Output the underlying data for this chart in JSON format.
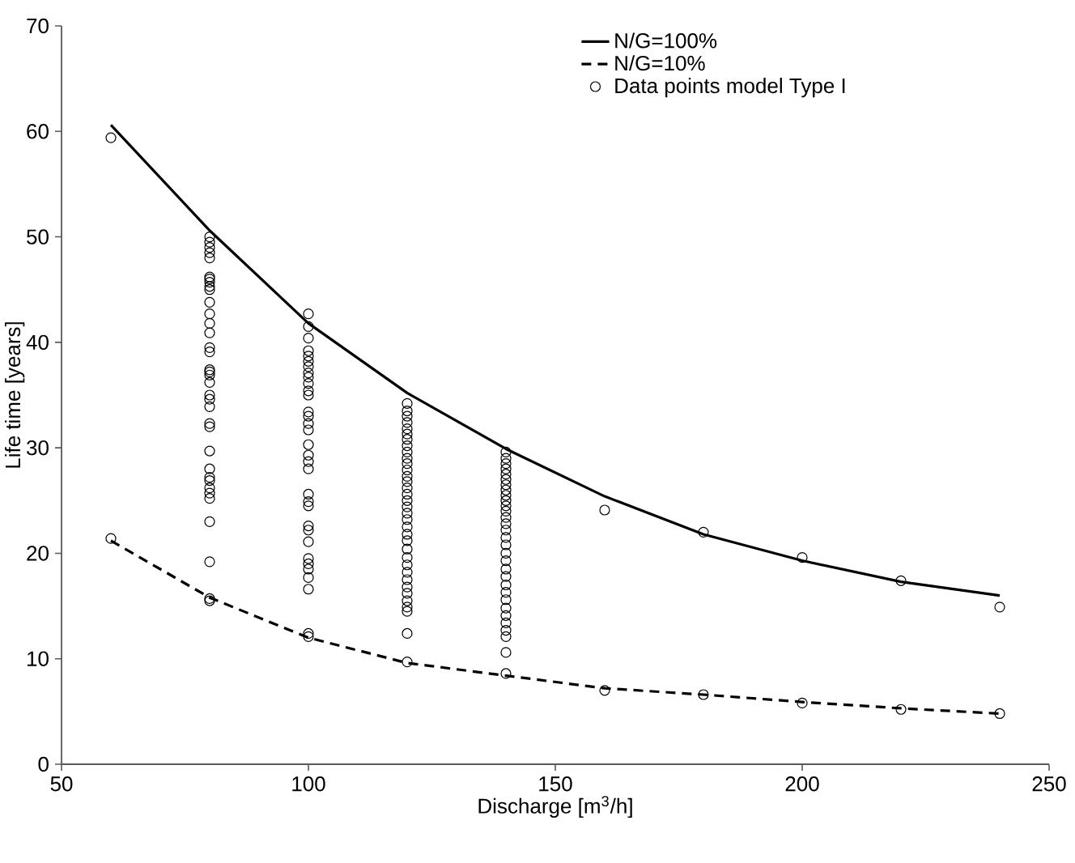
{
  "chart_data": {
    "type": "line",
    "xlabel": "Discharge [m$^{3}$/h]",
    "ylabel": "Life time [years]",
    "xlim": [
      50,
      250
    ],
    "ylim": [
      0,
      70
    ],
    "xticks": [
      50,
      100,
      150,
      200,
      250
    ],
    "yticks": [
      0,
      10,
      20,
      30,
      40,
      50,
      60,
      70
    ],
    "grid": false,
    "legend": "top right",
    "series": [
      {
        "name": "N/G=100%",
        "color": "#000000",
        "line_style": "solid",
        "marker": "none",
        "x": [
          60,
          80,
          100,
          120,
          140,
          160,
          180,
          200,
          220,
          240
        ],
        "values": [
          60.6,
          50.6,
          41.8,
          35.2,
          29.9,
          25.4,
          21.8,
          19.3,
          17.3,
          16.0
        ]
      },
      {
        "name": "N/G=10%",
        "color": "#000000",
        "line_style": "dashed",
        "marker": "none",
        "x": [
          60,
          80,
          100,
          120,
          140,
          160,
          180,
          200,
          220,
          240
        ],
        "values": [
          21.2,
          15.8,
          12.0,
          9.6,
          8.4,
          7.2,
          6.6,
          5.9,
          5.3,
          4.8
        ]
      },
      {
        "name": "Data points model Type I",
        "type": "scatter",
        "color": "#000000",
        "marker": "circle",
        "x": [
          60,
          60,
          80,
          80,
          80,
          80,
          80,
          80,
          80,
          80,
          80,
          80,
          80,
          80,
          80,
          80,
          80,
          80,
          80,
          80,
          80,
          80,
          80,
          80,
          80,
          80,
          80,
          80,
          80,
          80,
          80,
          80,
          80,
          80,
          80,
          80,
          80,
          80,
          100,
          100,
          100,
          100,
          100,
          100,
          100,
          100,
          100,
          100,
          100,
          100,
          100,
          100,
          100,
          100,
          100,
          100,
          100,
          100,
          100,
          100,
          100,
          100,
          100,
          100,
          100,
          100,
          100,
          100,
          100,
          100,
          100,
          120,
          120,
          120,
          120,
          120,
          120,
          120,
          120,
          120,
          120,
          120,
          120,
          120,
          120,
          120,
          120,
          120,
          120,
          120,
          120,
          120,
          120,
          120,
          120,
          120,
          120,
          120,
          120,
          120,
          120,
          120,
          120,
          120,
          120,
          120,
          140,
          140,
          140,
          140,
          140,
          140,
          140,
          140,
          140,
          140,
          140,
          140,
          140,
          140,
          140,
          140,
          140,
          140,
          140,
          140,
          140,
          140,
          140,
          140,
          140,
          140,
          140,
          140,
          140,
          140,
          140,
          160,
          160,
          180,
          180,
          200,
          200,
          220,
          220,
          240,
          240
        ],
        "values": [
          59.4,
          21.4,
          50.0,
          49.5,
          49.0,
          48.5,
          48.0,
          46.2,
          46.0,
          45.7,
          45.3,
          45.0,
          43.8,
          42.7,
          41.8,
          40.9,
          39.5,
          39.1,
          37.4,
          37.2,
          36.9,
          36.2,
          35.0,
          34.6,
          33.9,
          32.3,
          32.0,
          29.7,
          28.0,
          27.2,
          26.9,
          26.2,
          25.7,
          25.2,
          23.0,
          19.2,
          15.7,
          15.5,
          42.7,
          41.5,
          40.4,
          39.2,
          38.7,
          38.2,
          37.7,
          37.1,
          36.7,
          36.1,
          35.4,
          35.0,
          33.4,
          33.0,
          32.3,
          31.7,
          30.3,
          29.3,
          28.7,
          28.0,
          25.6,
          24.9,
          24.5,
          22.6,
          22.2,
          21.1,
          19.5,
          19.0,
          18.5,
          17.7,
          16.6,
          12.4,
          12.1,
          34.2,
          33.5,
          33.0,
          32.4,
          31.8,
          31.3,
          30.8,
          30.2,
          29.6,
          29.0,
          28.5,
          27.9,
          27.3,
          26.8,
          26.2,
          25.6,
          25.0,
          24.4,
          23.8,
          23.2,
          22.5,
          21.8,
          21.2,
          20.4,
          19.6,
          18.9,
          18.2,
          17.5,
          16.8,
          16.2,
          15.5,
          14.9,
          14.5,
          12.4,
          9.7,
          29.6,
          29.0,
          28.5,
          28.0,
          27.5,
          27.0,
          26.5,
          26.0,
          25.5,
          25.0,
          24.5,
          24.0,
          23.4,
          22.8,
          22.2,
          21.5,
          20.8,
          20.0,
          19.3,
          18.5,
          17.8,
          17.0,
          16.3,
          15.6,
          14.8,
          14.1,
          13.4,
          12.7,
          12.1,
          10.6,
          8.6,
          24.1,
          7.0,
          22.0,
          6.6,
          19.6,
          5.8,
          17.4,
          5.2,
          14.9,
          4.8
        ]
      }
    ]
  }
}
